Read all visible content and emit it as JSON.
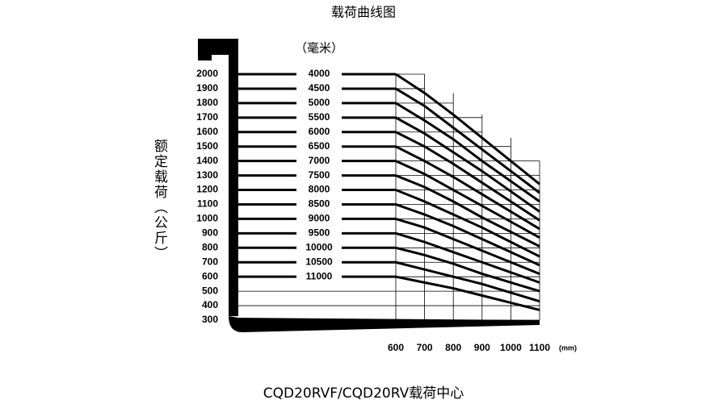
{
  "chart_data": {
    "type": "line",
    "title": "载荷曲线图",
    "footer": "CQD20RVF/CQD20RV载荷中心",
    "y_label": "额定载荷（公斤）",
    "series_label": "（毫米）",
    "x_label": "(mm)",
    "x": [
      600,
      700,
      800,
      900,
      1000,
      1100
    ],
    "xlim": [
      600,
      1100
    ],
    "xticks": [
      600,
      700,
      800,
      900,
      1000,
      1100
    ],
    "ylim": [
      300,
      2000
    ],
    "yticks": [
      300,
      400,
      500,
      600,
      700,
      800,
      900,
      1000,
      1100,
      1200,
      1300,
      1400,
      1500,
      1600,
      1700,
      1800,
      1900,
      2000
    ],
    "grid": true,
    "series": [
      {
        "name": "4000",
        "color": "#000000",
        "values": [
          2000,
          1870,
          1720,
          1560,
          1400,
          1240
        ]
      },
      {
        "name": "4500",
        "color": "#000000",
        "values": [
          1900,
          1780,
          1630,
          1480,
          1330,
          1180
        ]
      },
      {
        "name": "5000",
        "color": "#000000",
        "values": [
          1800,
          1680,
          1550,
          1400,
          1260,
          1120
        ]
      },
      {
        "name": "5500",
        "color": "#000000",
        "values": [
          1700,
          1590,
          1460,
          1330,
          1190,
          1050
        ]
      },
      {
        "name": "6000",
        "color": "#000000",
        "values": [
          1600,
          1500,
          1380,
          1250,
          1120,
          990
        ]
      },
      {
        "name": "6500",
        "color": "#000000",
        "values": [
          1500,
          1400,
          1290,
          1170,
          1050,
          930
        ]
      },
      {
        "name": "7000",
        "color": "#000000",
        "values": [
          1400,
          1310,
          1200,
          1090,
          980,
          870
        ]
      },
      {
        "name": "7500",
        "color": "#000000",
        "values": [
          1300,
          1220,
          1120,
          1010,
          910,
          810
        ]
      },
      {
        "name": "8000",
        "color": "#000000",
        "values": [
          1200,
          1120,
          1030,
          940,
          840,
          740
        ]
      },
      {
        "name": "8500",
        "color": "#000000",
        "values": [
          1100,
          1030,
          950,
          860,
          770,
          680
        ]
      },
      {
        "name": "9000",
        "color": "#000000",
        "values": [
          1000,
          940,
          860,
          780,
          700,
          620
        ]
      },
      {
        "name": "9500",
        "color": "#000000",
        "values": [
          900,
          840,
          770,
          700,
          630,
          560
        ]
      },
      {
        "name": "10000",
        "color": "#000000",
        "values": [
          800,
          750,
          690,
          620,
          560,
          500
        ]
      },
      {
        "name": "10500",
        "color": "#000000",
        "values": [
          700,
          650,
          600,
          550,
          490,
          430
        ]
      },
      {
        "name": "11000",
        "color": "#000000",
        "values": [
          600,
          560,
          520,
          470,
          420,
          370
        ]
      }
    ]
  }
}
